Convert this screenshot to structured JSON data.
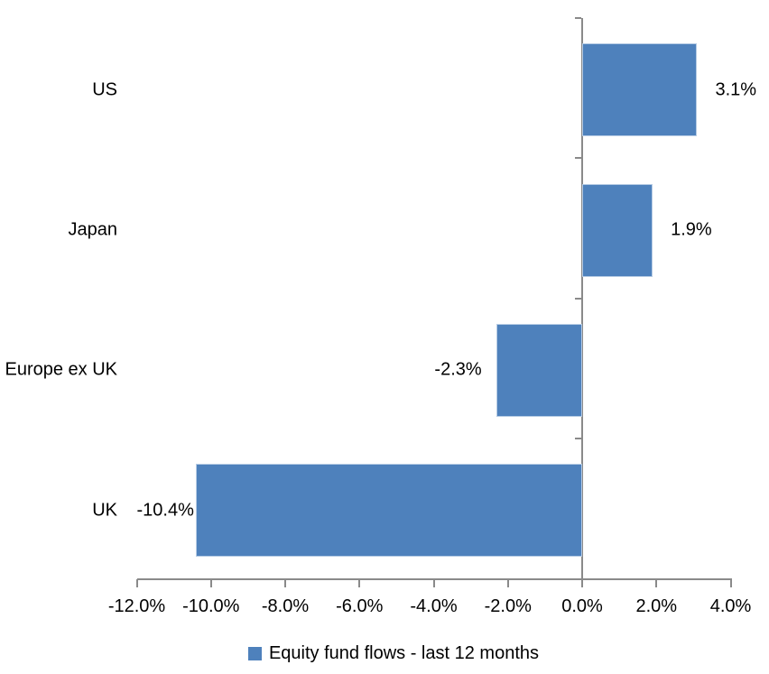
{
  "chart_data": {
    "type": "bar",
    "orientation": "horizontal",
    "title": "",
    "categories": [
      "US",
      "Japan",
      "Europe ex UK",
      "UK"
    ],
    "series": [
      {
        "name": "Equity fund flows - last 12 months",
        "values": [
          3.1,
          1.9,
          -2.3,
          -10.4
        ],
        "data_labels": [
          "3.1%",
          "1.9%",
          "-2.3%",
          "-10.4%"
        ]
      }
    ],
    "xlabel": "",
    "ylabel": "",
    "xlim": [
      -12,
      4
    ],
    "x_tick_values": [
      -12,
      -10,
      -8,
      -6,
      -4,
      -2,
      0,
      2,
      4
    ],
    "x_tick_labels": [
      "-12.0%",
      "-10.0%",
      "-8.0%",
      "-6.0%",
      "-4.0%",
      "-2.0%",
      "0.0%",
      "2.0%",
      "4.0%"
    ],
    "grid": false,
    "legend_position": "bottom",
    "legend_label": "Equity fund flows - last 12 months",
    "colors": {
      "bar_fill": "#4e81bc",
      "bar_border": "#b7cce4",
      "axis": "#8a8a8a",
      "text": "#000000",
      "background": "#ffffff"
    }
  }
}
